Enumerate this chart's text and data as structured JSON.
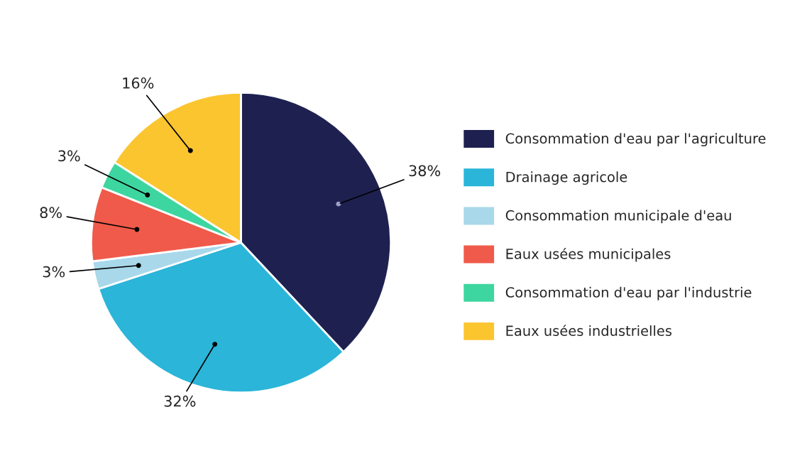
{
  "chart_data": {
    "type": "pie",
    "categories": [
      "Consommation d'eau par l'agriculture",
      "Drainage agricole",
      "Consommation municipale d'eau",
      "Eaux usées municipales",
      "Consommation d'eau par l'industrie",
      "Eaux usées industrielles"
    ],
    "values": [
      38,
      32,
      3,
      8,
      3,
      16
    ],
    "colors": [
      "#1e2150",
      "#2bb5d8",
      "#a8d8ea",
      "#f05a4a",
      "#3ed6a0",
      "#fbc530"
    ],
    "value_labels": [
      "38%",
      "32%",
      "3%",
      "8%",
      "3%",
      "16%"
    ],
    "legend": "right"
  }
}
